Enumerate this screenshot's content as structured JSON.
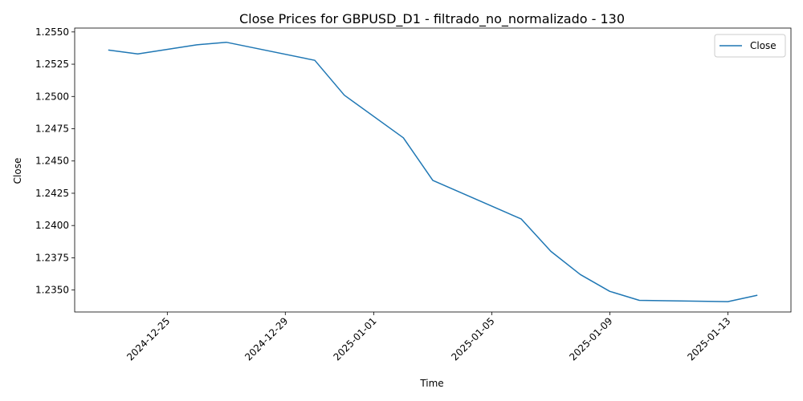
{
  "chart_data": {
    "type": "line",
    "title": "Close Prices for GBPUSD_D1 - filtrado_no_normalizado - 130",
    "xlabel": "Time",
    "ylabel": "Close",
    "legend_position": "top-right",
    "grid": false,
    "x_ticks": [
      "2024-12-25",
      "2024-12-29",
      "2025-01-01",
      "2025-01-05",
      "2025-01-09",
      "2025-01-13"
    ],
    "y_ticks": [
      "1.2350",
      "1.2375",
      "1.2400",
      "1.2425",
      "1.2450",
      "1.2475",
      "1.2500",
      "1.2525",
      "1.2550"
    ],
    "ylim": [
      1.2333,
      1.2553
    ],
    "xlim": [
      "2024-12-21T20:40",
      "2025-01-15T03:20"
    ],
    "series": [
      {
        "name": "Close",
        "color": "#1f77b4",
        "points": [
          {
            "x": "2024-12-23",
            "y": 1.2536
          },
          {
            "x": "2024-12-24",
            "y": 1.2533
          },
          {
            "x": "2024-12-26",
            "y": 1.254
          },
          {
            "x": "2024-12-27",
            "y": 1.2542
          },
          {
            "x": "2024-12-30",
            "y": 1.2528
          },
          {
            "x": "2024-12-31",
            "y": 1.2501
          },
          {
            "x": "2025-01-02",
            "y": 1.2468
          },
          {
            "x": "2025-01-03",
            "y": 1.2435
          },
          {
            "x": "2025-01-06",
            "y": 1.2405
          },
          {
            "x": "2025-01-07",
            "y": 1.238
          },
          {
            "x": "2025-01-08",
            "y": 1.2362
          },
          {
            "x": "2025-01-09",
            "y": 1.2349
          },
          {
            "x": "2025-01-10",
            "y": 1.2342
          },
          {
            "x": "2025-01-13",
            "y": 1.2341
          },
          {
            "x": "2025-01-14",
            "y": 1.2346
          }
        ]
      }
    ]
  }
}
